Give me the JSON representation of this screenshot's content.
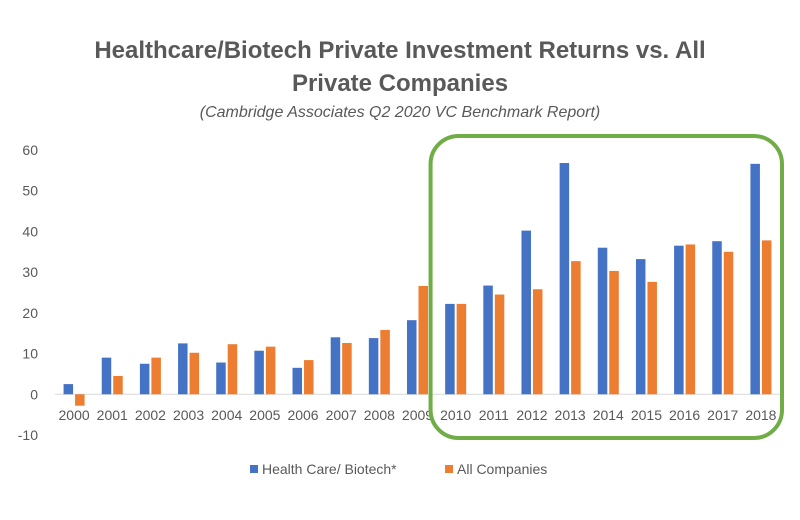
{
  "chart_data": {
    "type": "bar",
    "title_line1": "Healthcare/Biotech Private Investment Returns vs. All",
    "title_line2": "Private Companies",
    "subtitle": "(Cambridge Associates Q2 2020 VC Benchmark Report)",
    "categories": [
      "2000",
      "2001",
      "2002",
      "2003",
      "2004",
      "2005",
      "2006",
      "2007",
      "2008",
      "2009",
      "2010",
      "2011",
      "2012",
      "2013",
      "2014",
      "2015",
      "2016",
      "2017",
      "2018"
    ],
    "series": [
      {
        "name": "Health Care/ Biotech*",
        "color": "#4472c4",
        "values": [
          2.5,
          9,
          7.5,
          12.5,
          7.8,
          10.7,
          6.5,
          14,
          13.8,
          18.2,
          22.2,
          26.7,
          40.2,
          56.8,
          36,
          33.2,
          36.5,
          37.6,
          56.6
        ]
      },
      {
        "name": "All Companies",
        "color": "#ed7d31",
        "values": [
          -2.8,
          4.5,
          9,
          10.2,
          12.3,
          11.7,
          8.4,
          12.6,
          15.8,
          26.6,
          22.2,
          24.5,
          25.8,
          32.7,
          30.3,
          27.6,
          36.8,
          35,
          37.8
        ]
      }
    ],
    "yticks": [
      "60",
      "50",
      "40",
      "30",
      "20",
      "10",
      "0",
      "-10"
    ],
    "ylim": [
      -10,
      60
    ],
    "grid": false,
    "legend_position": "bottom",
    "highlight": {
      "from": "2010",
      "to": "2018",
      "color": "#70ad47"
    }
  }
}
